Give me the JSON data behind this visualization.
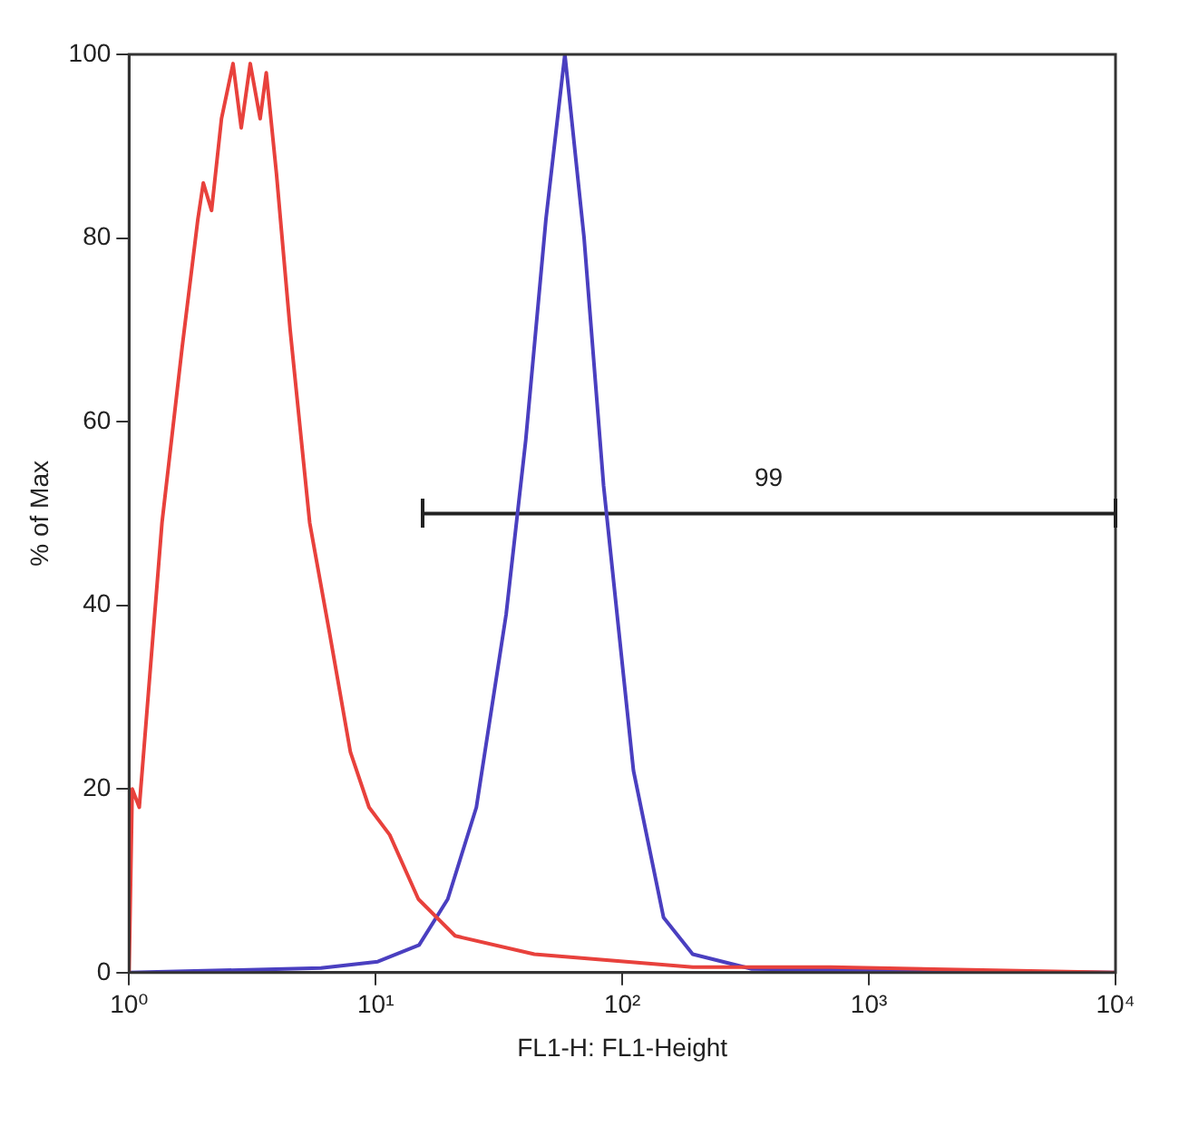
{
  "chart_data": {
    "type": "line",
    "xlabel": "FL1-H: FL1-Height",
    "ylabel": "% of Max",
    "log": "x",
    "xlim": [
      1,
      10000
    ],
    "xticks": [
      {
        "value": 1,
        "label": "10⁰"
      },
      {
        "value": 10,
        "label": "10¹"
      },
      {
        "value": 100,
        "label": "10²"
      },
      {
        "value": 1000,
        "label": "10³"
      },
      {
        "value": 10000,
        "label": "10⁴"
      }
    ],
    "ylim": [
      0,
      100
    ],
    "yticks": [
      0,
      20,
      40,
      60,
      80,
      100
    ],
    "grid": false,
    "legend": false,
    "marker": "none",
    "line_style": "solid",
    "series": [
      {
        "color": "#e8413c",
        "x": [
          1,
          1.03,
          1.1,
          1.36,
          1.64,
          1.9,
          2.0,
          2.16,
          2.37,
          2.64,
          2.85,
          3.1,
          3.4,
          3.6,
          3.96,
          4.5,
          5.4,
          6.5,
          7.9,
          9.4,
          11.4,
          14.9,
          21,
          44,
          193,
          700,
          10000
        ],
        "values": [
          0,
          20,
          18,
          49,
          68,
          82,
          86,
          83,
          93,
          99,
          92,
          99,
          93,
          98,
          87,
          70,
          49,
          37,
          24,
          18,
          15,
          8,
          4,
          2,
          0.6,
          0.6,
          0
        ]
      },
      {
        "color": "#4a3fc0",
        "x": [
          1,
          6,
          10.2,
          15,
          19.6,
          25.6,
          33.8,
          40.6,
          49,
          58.5,
          70,
          84,
          111,
          147,
          193,
          335,
          10000
        ],
        "values": [
          0,
          0.5,
          1.2,
          3,
          8,
          18,
          39,
          58,
          82,
          100,
          80,
          53,
          22,
          6,
          2,
          0.4,
          0
        ]
      },
      {
        "type": "line",
        "color": "#222222",
        "x": [
          15.4,
          10000
        ],
        "values": [
          50,
          50
        ]
      }
    ],
    "annotations": [
      "99"
    ]
  }
}
